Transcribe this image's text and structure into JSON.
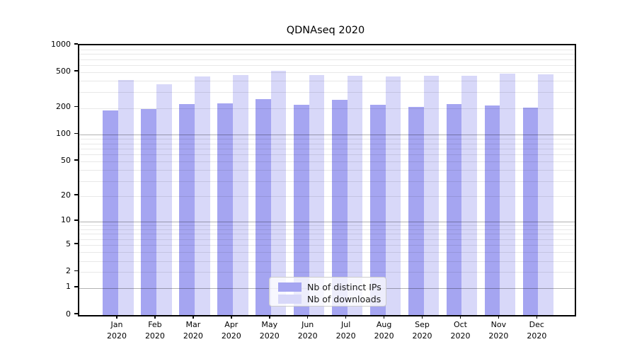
{
  "chart_data": {
    "type": "bar",
    "title": "QDNAseq 2020",
    "categories": [
      "Jan",
      "Feb",
      "Mar",
      "Apr",
      "May",
      "Jun",
      "Jul",
      "Aug",
      "Sep",
      "Oct",
      "Nov",
      "Dec"
    ],
    "year": "2020",
    "series": [
      {
        "name": "Nb of distinct IPs",
        "color": "#a5a5f1",
        "values": [
          189,
          196,
          220,
          226,
          252,
          217,
          248,
          219,
          205,
          222,
          215,
          201
        ]
      },
      {
        "name": "Nb of downloads",
        "color": "#d8d8f9",
        "values": [
          414,
          370,
          450,
          469,
          520,
          467,
          462,
          450,
          458,
          457,
          484,
          472
        ]
      }
    ],
    "y_scale": "log(1+x)",
    "y_ticks": [
      1000,
      500,
      200,
      100,
      50,
      20,
      10,
      5,
      2,
      1,
      0
    ],
    "ylim": [
      0,
      1000
    ],
    "grid": true,
    "legend_position": "bottom-center"
  }
}
